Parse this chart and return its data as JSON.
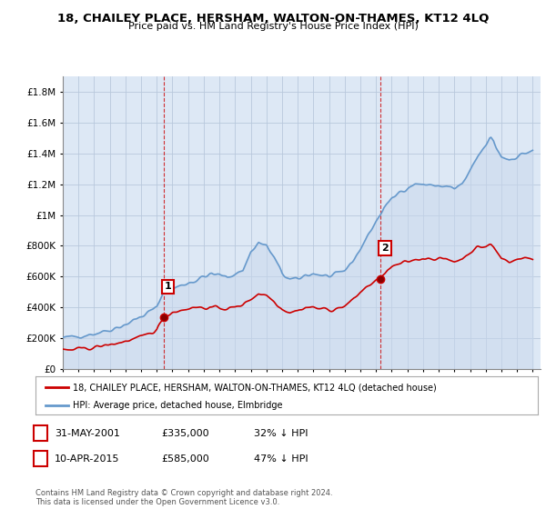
{
  "title": "18, CHAILEY PLACE, HERSHAM, WALTON-ON-THAMES, KT12 4LQ",
  "subtitle": "Price paid vs. HM Land Registry's House Price Index (HPI)",
  "legend_line1": "18, CHAILEY PLACE, HERSHAM, WALTON-ON-THAMES, KT12 4LQ (detached house)",
  "legend_line2": "HPI: Average price, detached house, Elmbridge",
  "annotation1_label": "1",
  "annotation1_date": "31-MAY-2001",
  "annotation1_price": "£335,000",
  "annotation1_hpi": "32% ↓ HPI",
  "annotation2_label": "2",
  "annotation2_date": "10-APR-2015",
  "annotation2_price": "£585,000",
  "annotation2_hpi": "47% ↓ HPI",
  "footer": "Contains HM Land Registry data © Crown copyright and database right 2024.\nThis data is licensed under the Open Government Licence v3.0.",
  "red_color": "#cc0000",
  "blue_color": "#6699cc",
  "blue_fill": "#ddeeff",
  "background_color": "#f0f4ff",
  "chart_bg": "#e8f0f8",
  "grid_color": "#c0c8d8",
  "ylim": [
    0,
    1900000
  ],
  "yticks": [
    0,
    200000,
    400000,
    600000,
    800000,
    1000000,
    1200000,
    1400000,
    1600000,
    1800000
  ],
  "ytick_labels": [
    "£0",
    "£200K",
    "£400K",
    "£600K",
    "£800K",
    "£1M",
    "£1.2M",
    "£1.4M",
    "£1.6M",
    "£1.8M"
  ],
  "sale1_x": 2001.42,
  "sale1_y": 335000,
  "sale2_x": 2015.27,
  "sale2_y": 585000,
  "vline1_x": 2001.42,
  "vline2_x": 2015.27,
  "xmin": 1995,
  "xmax": 2025.5
}
